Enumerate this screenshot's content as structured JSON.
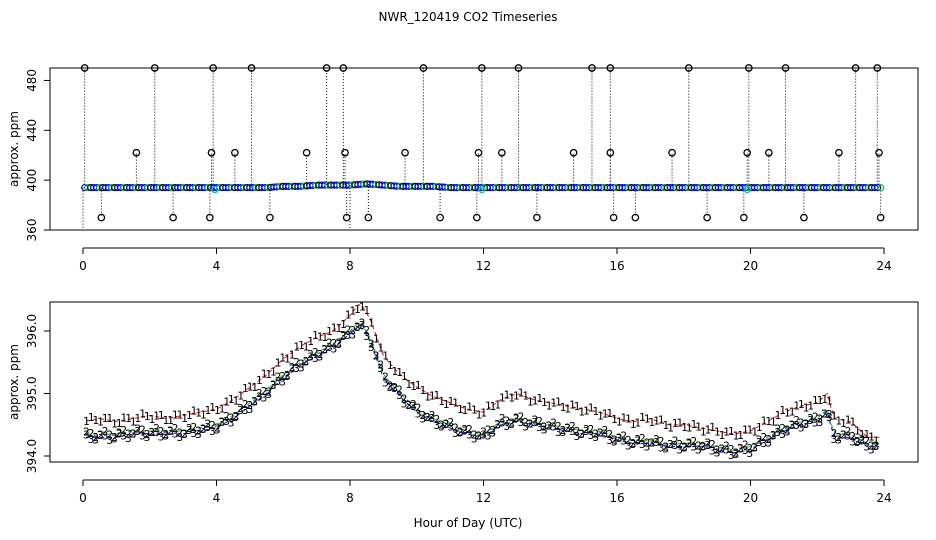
{
  "page": {
    "title": "NWR_120419  CO2 Timeseries",
    "xlabel": "Hour of Day (UTC)"
  },
  "chart_data": [
    {
      "type": "scatter",
      "title": "NWR_120419  CO2 Timeseries",
      "ylabel": "approx. ppm",
      "xlim": [
        0,
        24
      ],
      "ylim": [
        360,
        490
      ],
      "xticks": [
        0,
        4,
        8,
        12,
        16,
        20,
        24
      ],
      "yticks": [
        360,
        400,
        440,
        480
      ],
      "baseline": {
        "x": [
          0,
          0.5,
          1,
          1.5,
          2,
          2.5,
          3,
          3.5,
          4,
          4.5,
          5,
          5.5,
          6,
          6.5,
          7,
          7.5,
          8,
          8.5,
          9,
          9.5,
          10,
          10.5,
          11,
          11.5,
          12,
          12.5,
          13,
          13.5,
          14,
          14.5,
          15,
          15.5,
          16,
          16.5,
          17,
          17.5,
          18,
          18.5,
          19,
          19.5,
          20,
          20.5,
          21,
          21.5,
          22,
          22.5,
          23,
          23.5,
          23.9
        ],
        "y": [
          394,
          394,
          394,
          394,
          394,
          394,
          394,
          394,
          394,
          394,
          394,
          394,
          395,
          395,
          396,
          396,
          396,
          397,
          396,
          395,
          395,
          395,
          394,
          394,
          394,
          394,
          394,
          394,
          394,
          394,
          394,
          394,
          394,
          394,
          394,
          394,
          394,
          394,
          394,
          394,
          394,
          394,
          394,
          394,
          394,
          394,
          394,
          394,
          394
        ]
      },
      "spikes": {
        "x": [
          0.05,
          2.15,
          3.9,
          5.05,
          7.3,
          7.8,
          10.2,
          11.95,
          13.05,
          15.25,
          15.8,
          18.15,
          19.95,
          21.05,
          23.15,
          23.8
        ],
        "y": [
          490,
          490,
          490,
          490,
          490,
          490,
          490,
          490,
          490,
          490,
          490,
          490,
          490,
          490,
          490,
          490
        ]
      },
      "mid_spikes": {
        "x": [
          1.6,
          3.85,
          4.55,
          6.7,
          7.85,
          9.65,
          11.85,
          12.55,
          14.7,
          15.8,
          17.65,
          19.9,
          20.55,
          22.65,
          23.85
        ],
        "y": [
          422,
          422,
          422,
          422,
          422,
          422,
          422,
          422,
          422,
          422,
          422,
          422,
          422,
          422,
          422
        ]
      },
      "dips": {
        "x": [
          0.55,
          2.7,
          3.8,
          5.6,
          7.9,
          8.55,
          10.7,
          11.8,
          13.6,
          15.9,
          16.55,
          18.7,
          19.8,
          21.6,
          23.9
        ],
        "y": [
          370,
          370,
          370,
          370,
          370,
          370,
          370,
          370,
          370,
          370,
          370,
          370,
          370,
          370,
          370
        ]
      }
    },
    {
      "type": "scatter",
      "ylabel": "approx. ppm",
      "xlim": [
        0,
        24
      ],
      "ylim": [
        394.0,
        396.4
      ],
      "xticks": [
        0,
        4,
        8,
        12,
        16,
        20,
        24
      ],
      "yticks": [
        "394.0",
        "395.0",
        "396.0"
      ],
      "series": [
        {
          "name": "1",
          "color": "#ff0000",
          "x": [
            0,
            0.5,
            1,
            1.5,
            2,
            2.5,
            3,
            3.5,
            4,
            4.5,
            5,
            5.5,
            6,
            6.5,
            7,
            7.5,
            8,
            8.3,
            8.6,
            9,
            9.5,
            10,
            10.5,
            11,
            11.5,
            12,
            12.5,
            13,
            13.5,
            14,
            14.5,
            15,
            15.5,
            16,
            16.5,
            17,
            17.5,
            18,
            18.5,
            19,
            19.5,
            20,
            20.5,
            21,
            21.5,
            22,
            22.3,
            22.5,
            23,
            23.5,
            23.9
          ],
          "y": [
            394.55,
            394.6,
            394.55,
            394.6,
            394.65,
            394.6,
            394.65,
            394.7,
            394.75,
            394.9,
            395.1,
            395.3,
            395.55,
            395.75,
            395.9,
            396.0,
            396.25,
            396.45,
            396.2,
            395.6,
            395.3,
            395.1,
            394.95,
            394.85,
            394.75,
            394.7,
            394.9,
            395.0,
            394.9,
            394.85,
            394.8,
            394.75,
            394.7,
            394.6,
            394.55,
            394.6,
            394.5,
            394.5,
            394.45,
            394.4,
            394.35,
            394.4,
            394.55,
            394.7,
            394.8,
            394.85,
            395.0,
            394.6,
            394.55,
            394.3,
            394.3
          ]
        },
        {
          "name": "2",
          "color": "#00c800",
          "x": [
            0,
            0.5,
            1,
            1.5,
            2,
            2.5,
            3,
            3.5,
            4,
            4.5,
            5,
            5.5,
            6,
            6.5,
            7,
            7.5,
            8,
            8.3,
            8.6,
            9,
            9.5,
            10,
            10.5,
            11,
            11.5,
            12,
            12.5,
            13,
            13.5,
            14,
            14.5,
            15,
            15.5,
            16,
            16.5,
            17,
            17.5,
            18,
            18.5,
            19,
            19.5,
            20,
            20.5,
            21,
            21.5,
            22,
            22.3,
            22.5,
            23,
            23.5,
            23.9
          ],
          "y": [
            394.35,
            394.35,
            394.35,
            394.4,
            394.4,
            394.4,
            394.4,
            394.45,
            394.5,
            394.65,
            394.85,
            395.05,
            395.3,
            395.5,
            395.65,
            395.8,
            396.0,
            396.15,
            395.9,
            395.3,
            395.0,
            394.75,
            394.6,
            394.5,
            394.4,
            394.35,
            394.55,
            394.6,
            394.55,
            394.5,
            394.45,
            394.4,
            394.4,
            394.3,
            394.25,
            394.25,
            394.2,
            394.2,
            394.2,
            394.15,
            394.1,
            394.15,
            394.3,
            394.45,
            394.55,
            394.6,
            394.75,
            394.35,
            394.35,
            394.2,
            394.2
          ]
        },
        {
          "name": "3",
          "color": "#0000ff",
          "x": [
            0,
            0.5,
            1,
            1.5,
            2,
            2.5,
            3,
            3.5,
            4,
            4.5,
            5,
            5.5,
            6,
            6.5,
            7,
            7.5,
            8,
            8.3,
            8.6,
            9,
            9.5,
            10,
            10.5,
            11,
            11.5,
            12,
            12.5,
            13,
            13.5,
            14,
            14.5,
            15,
            15.5,
            16,
            16.5,
            17,
            17.5,
            18,
            18.5,
            19,
            19.5,
            20,
            20.5,
            21,
            21.5,
            22,
            22.3,
            22.5,
            23,
            23.5,
            23.9
          ],
          "y": [
            394.3,
            394.3,
            394.3,
            394.35,
            394.35,
            394.35,
            394.35,
            394.4,
            394.45,
            394.6,
            394.8,
            395.0,
            395.25,
            395.45,
            395.6,
            395.75,
            395.95,
            396.1,
            395.85,
            395.25,
            394.95,
            394.7,
            394.55,
            394.45,
            394.35,
            394.3,
            394.5,
            394.55,
            394.5,
            394.45,
            394.4,
            394.35,
            394.35,
            394.25,
            394.2,
            394.2,
            394.15,
            394.15,
            394.15,
            394.1,
            394.05,
            394.1,
            394.25,
            394.4,
            394.5,
            394.55,
            394.7,
            394.3,
            394.3,
            394.15,
            394.15
          ]
        }
      ]
    }
  ]
}
